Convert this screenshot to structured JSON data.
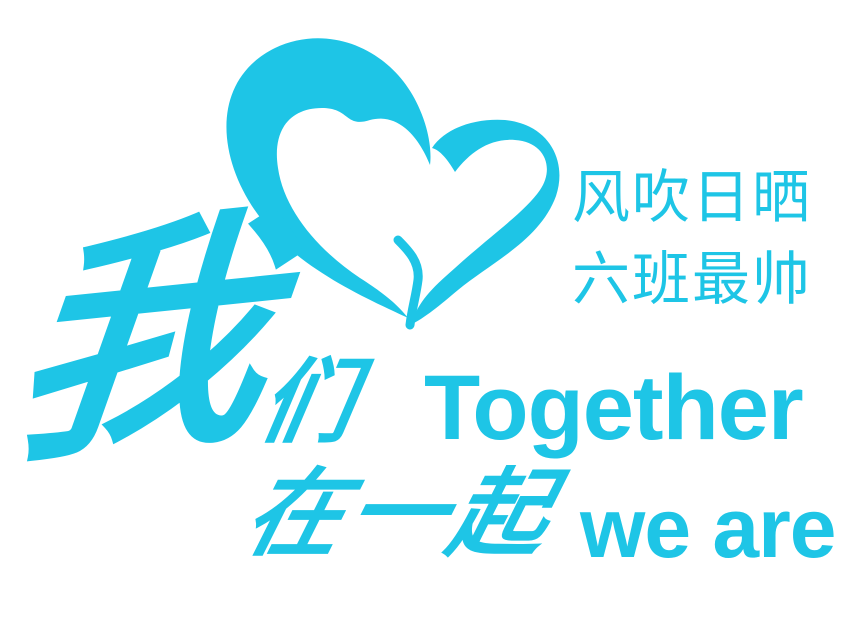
{
  "colors": {
    "accent": "#1ec5e6",
    "background": "#ffffff"
  },
  "logo": {
    "icon": "heart-icon"
  },
  "slogan": {
    "line1": "风吹日晒",
    "line2": "六班最帅"
  },
  "calligraphy": {
    "wo": "我",
    "men": "们",
    "zai_yi_qi": "在一起"
  },
  "english": {
    "together": "Together",
    "we_are": "we are"
  }
}
